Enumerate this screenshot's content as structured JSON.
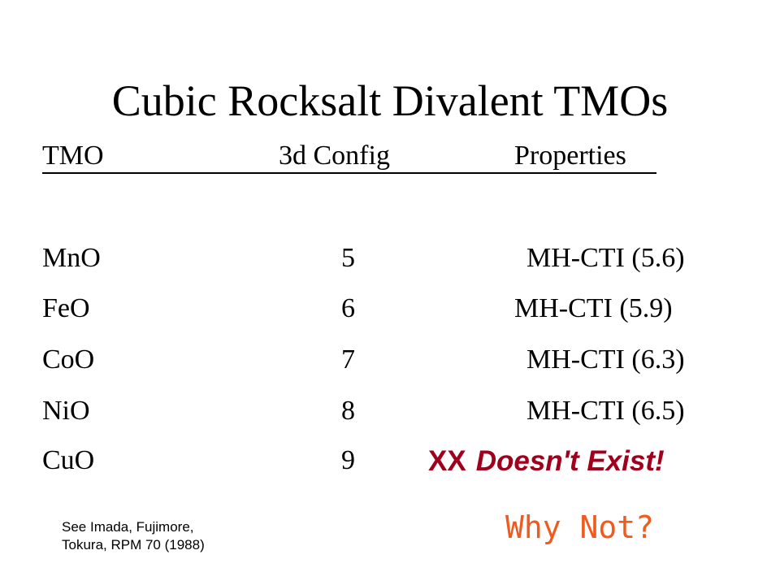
{
  "slide": {
    "title": "Cubic Rocksalt Divalent TMOs"
  },
  "table": {
    "headers": {
      "tmo": "TMO",
      "config": "3d Config",
      "properties": "Properties"
    },
    "rows": [
      {
        "name": "MnO",
        "config": "5",
        "properties": "MH-CTI (5.6)"
      },
      {
        "name": "FeO",
        "config": "6",
        "properties": "MH-CTI (5.9)"
      },
      {
        "name": "CoO",
        "config": "7",
        "properties": "MH-CTI (6.3)"
      },
      {
        "name": "NiO",
        "config": "8",
        "properties": "MH-CTI (6.5)"
      },
      {
        "name": "CuO",
        "config": "9",
        "properties": ""
      }
    ]
  },
  "note": {
    "marker": "XX",
    "text": "Doesn't Exist!",
    "color": "#a0001c"
  },
  "callout": {
    "text": "Why Not?",
    "color": "#f05a1e"
  },
  "citation": {
    "line1": "See Imada, Fujimore,",
    "line2": "Tokura, RPM 70 (1988)"
  }
}
